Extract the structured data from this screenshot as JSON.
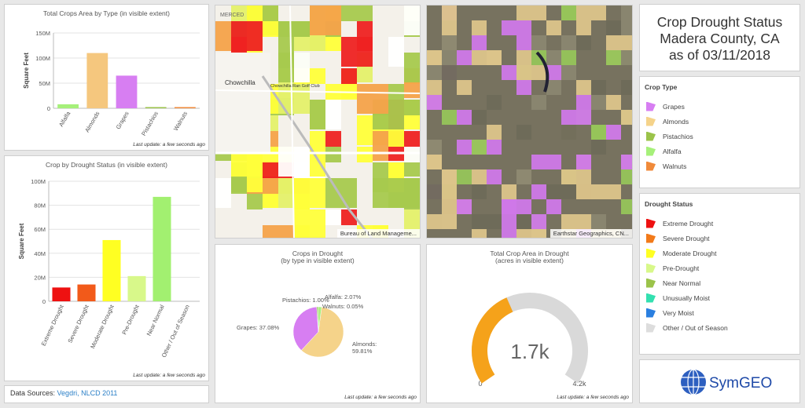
{
  "crops_chart": {
    "title": "Total Crops Area by Type (in visible extent)",
    "footer": "Last update: a few seconds ago",
    "chart_data": {
      "type": "bar",
      "title": "Total Crops Area by Type (in visible extent)",
      "ylabel": "Square Feet",
      "categories": [
        "Alfalfa",
        "Almonds",
        "Grapes",
        "Pistachios",
        "Walnuts"
      ],
      "values": [
        8000000,
        110000000,
        65000000,
        2000000,
        500000
      ],
      "colors": [
        "#a6f07a",
        "#f5c77e",
        "#d77ef2",
        "#9bc34a",
        "#f08a3a"
      ],
      "ylim": [
        0,
        150000000
      ],
      "ticks": [
        0,
        50000000,
        100000000,
        150000000
      ],
      "tick_labels": [
        "0",
        "50M",
        "100M",
        "150M"
      ],
      "grid": true
    }
  },
  "drought_chart": {
    "title": "Crop by Drought Status (in visible extent)",
    "footer": "Last update: a few seconds ago",
    "chart_data": {
      "type": "bar",
      "title": "Crop by Drought Status (in visible extent)",
      "ylabel": "Square Feet",
      "categories": [
        "Extreme Drought",
        "Severe Drought",
        "Moderate Drought",
        "Pre-Drought",
        "Near Normal",
        "Other / Out of Season"
      ],
      "values": [
        11500000,
        14000000,
        51000000,
        21000000,
        87000000,
        0
      ],
      "colors": [
        "#ee1111",
        "#f25a1a",
        "#ffff22",
        "#d8f88a",
        "#a2f070",
        "#dddddd"
      ],
      "ylim": [
        0,
        100000000
      ],
      "ticks": [
        0,
        20000000,
        40000000,
        60000000,
        80000000,
        100000000
      ],
      "tick_labels": [
        "0",
        "20M",
        "40M",
        "60M",
        "80M",
        "100M"
      ],
      "grid": true
    }
  },
  "pie_chart": {
    "title_line1": "Crops in Drought",
    "title_line2": "(by type in visible extent)",
    "footer": "Last update: a few seconds ago",
    "chart_data": {
      "type": "pie",
      "title": "Crops in Drought",
      "subtitle": "(by type in visible extent)",
      "categories": [
        "Almonds",
        "Grapes",
        "Pistachios",
        "Walnuts",
        "Alfalfa"
      ],
      "values": [
        59.81,
        37.08,
        1.0,
        0.05,
        2.07
      ],
      "labels": [
        "Almonds: 59.81%",
        "Grapes: 37.08%",
        "Pistachios: 1.00%",
        "Walnuts: 0.05%",
        "Alfalfa: 2.07%"
      ],
      "colors": [
        "#f5d38a",
        "#d77ef2",
        "#8cc84a",
        "#f08a3a",
        "#a6f07a"
      ]
    }
  },
  "gauge": {
    "title_line1": "Total Crop Area in Drought",
    "title_line2": "(acres in visible extent)",
    "footer": "Last update: a few seconds ago",
    "value_label": "1.7k",
    "min_label": "0",
    "max_label": "4.2k",
    "fraction": 0.405,
    "fill_color": "#f5a21a",
    "track_color": "#d9d9d9"
  },
  "map_left": {
    "attribution": "Bureau of Land Manageme...",
    "place_labels": [
      "MERCED",
      "Chowchilla",
      "Chowchilla Ran Golf Club"
    ]
  },
  "map_right": {
    "attribution": "Earthstar Geographics, CN..."
  },
  "title_panel": {
    "line1": "Crop Drought Status",
    "line2": "Madera County, CA",
    "line3": "as of 03/11/2018"
  },
  "crop_legend": {
    "heading": "Crop Type",
    "items": [
      {
        "label": "Grapes",
        "color": "#d77ef2"
      },
      {
        "label": "Almonds",
        "color": "#f5d38a"
      },
      {
        "label": "Pistachios",
        "color": "#9bc34a"
      },
      {
        "label": "Alfalfa",
        "color": "#a6f07a"
      },
      {
        "label": "Walnuts",
        "color": "#f08a3a"
      }
    ]
  },
  "drought_legend": {
    "heading": "Drought Status",
    "items": [
      {
        "label": "Extreme Drought",
        "color": "#ee1111"
      },
      {
        "label": "Severe Drought",
        "color": "#f27a1a"
      },
      {
        "label": "Moderate Drought",
        "color": "#ffff22"
      },
      {
        "label": "Pre-Drought",
        "color": "#d8f88a"
      },
      {
        "label": "Near Normal",
        "color": "#9bc34a"
      },
      {
        "label": "Unusually Moist",
        "color": "#33e0b0"
      },
      {
        "label": "Very Moist",
        "color": "#2a7fe0"
      },
      {
        "label": "Other / Out of Season",
        "color": "#dddddd"
      }
    ]
  },
  "logo": {
    "text": "SymGEO"
  },
  "sources": {
    "label": "Data Sources:",
    "link": "Vegdri, NLCD 2011"
  }
}
